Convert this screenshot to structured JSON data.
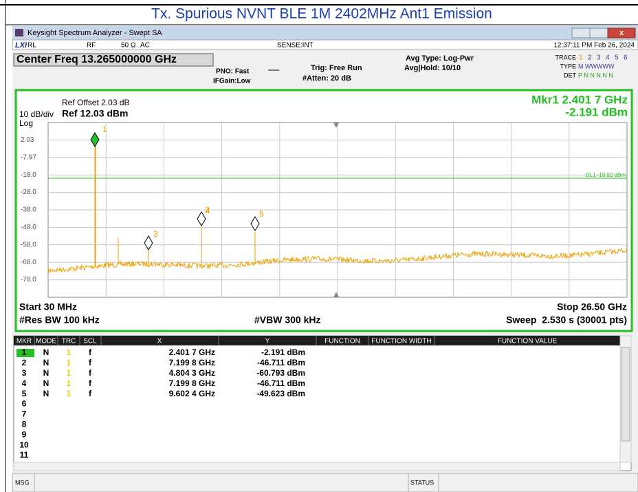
{
  "page_title": "Tx. Spurious NVNT BLE 1M 2402MHz Ant1 Emission",
  "window": {
    "title": "Keysight Spectrum Analyzer - Swept SA"
  },
  "status_bar": {
    "rl": "RL",
    "rf": "RF",
    "impedance": "50 Ω",
    "coupling": "AC",
    "sense": "SENSE:INT",
    "datetime": "12:37:11 PM Feb 26, 2024"
  },
  "settings": {
    "center_freq": "Center Freq 13.265000000 GHz",
    "pno": "PNO: Fast",
    "ifgain": "IFGain:Low",
    "trig": "Trig: Free Run",
    "atten": "#Atten: 20 dB",
    "avg_type": "Avg Type: Log-Pwr",
    "avg_hold": "Avg|Hold: 10/10",
    "trace_label": "TRACE",
    "trace_nums": [
      "1",
      "2",
      "3",
      "4",
      "5",
      "6"
    ],
    "type_label": "TYPE",
    "type_vals": "M WWWWW",
    "det_label": "DET",
    "det_vals": "P N N N N N"
  },
  "graph": {
    "ref_offset": "Ref Offset 2.03 dB",
    "ref_level": "Ref 12.03 dBm",
    "scale": "10 dB/div",
    "scale_type": "Log",
    "marker_freq": "Mkr1 2.401 7 GHz",
    "marker_level": "-2.191 dBm",
    "y_labels": [
      "2.03",
      "-7.97",
      "-18.0",
      "-28.0",
      "-38.0",
      "-48.0",
      "-58.0",
      "-68.0",
      "-78.0"
    ],
    "display_line": "DL1 -19.92 dBm",
    "start": "Start 30 MHz",
    "stop": "Stop 26.50 GHz",
    "rbw": "#Res BW 100 kHz",
    "vbw": "#VBW 300 kHz",
    "sweep": "Sweep  2.530 s (30001 pts)"
  },
  "table": {
    "columns": [
      "MKR",
      "MODE",
      "TRC",
      "SCL",
      "X",
      "Y",
      "FUNCTION",
      "FUNCTION WIDTH",
      "FUNCTION VALUE"
    ],
    "rows": [
      [
        "1",
        "N",
        "1",
        "f",
        "2.401 7 GHz",
        "-2.191 dBm"
      ],
      [
        "2",
        "N",
        "1",
        "f",
        "7.199 8 GHz",
        "-46.711 dBm"
      ],
      [
        "3",
        "N",
        "1",
        "f",
        "4.804 3 GHz",
        "-60.793 dBm"
      ],
      [
        "4",
        "N",
        "1",
        "f",
        "7.199 8 GHz",
        "-46.711 dBm"
      ],
      [
        "5",
        "N",
        "1",
        "f",
        "9.602 4 GHz",
        "-49.623 dBm"
      ],
      [
        "6"
      ],
      [
        "7"
      ],
      [
        "8"
      ],
      [
        "9"
      ],
      [
        "10"
      ],
      [
        "11"
      ]
    ]
  },
  "footer": {
    "msg": "MSG",
    "status": "STATUS"
  }
}
